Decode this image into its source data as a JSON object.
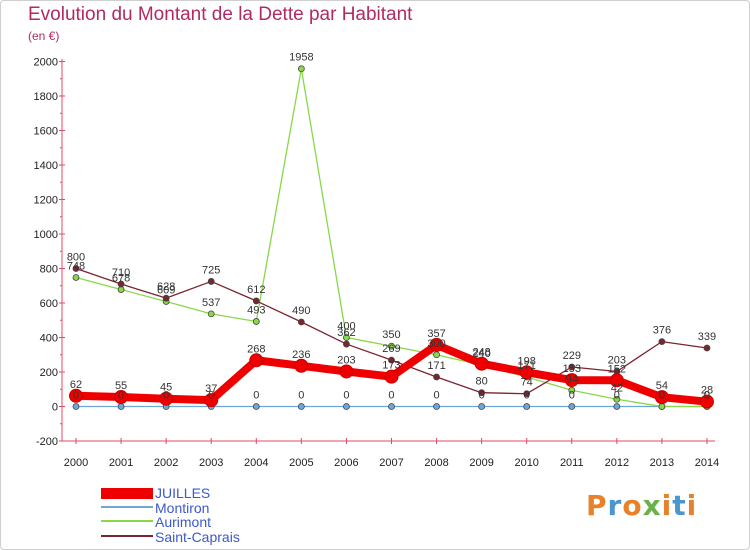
{
  "title": "Evolution du Montant de la Dette par Habitant",
  "subtitle": "(en €)",
  "chart_data": {
    "type": "line",
    "x": [
      "2000",
      "2001",
      "2002",
      "2003",
      "2004",
      "2005",
      "2006",
      "2007",
      "2008",
      "2009",
      "2010",
      "2011",
      "2012",
      "2013",
      "2014"
    ],
    "yticks": [
      "-200",
      "0",
      "200",
      "400",
      "600",
      "800",
      "1000",
      "1200",
      "1400",
      "1600",
      "1800",
      "2000"
    ],
    "ylim": [
      -200,
      2000
    ],
    "grid": false,
    "legend_position": "bottom-left",
    "series": [
      {
        "name": "JUILLES",
        "color": "#ee0000",
        "values": [
          62,
          55,
          45,
          37,
          268,
          236,
          203,
          173,
          357,
          248,
          198,
          153,
          152,
          54,
          28
        ],
        "labels": [
          "62",
          "55",
          "45",
          "37",
          "268",
          "236",
          "203",
          "173",
          "357",
          "248",
          "198",
          "153",
          "152",
          "54",
          "28"
        ]
      },
      {
        "name": "Montiron",
        "color": "#6ea6d6",
        "values": [
          0,
          0,
          0,
          0,
          0,
          0,
          0,
          0,
          0,
          0,
          0,
          0,
          0,
          0,
          0
        ],
        "labels": [
          "0",
          "0",
          "0",
          "0",
          "0",
          "0",
          "0",
          "0",
          "0",
          "0",
          "0",
          "0",
          "0",
          "0",
          "0"
        ]
      },
      {
        "name": "Aurimont",
        "color": "#88d84a",
        "values": [
          748,
          678,
          609,
          537,
          493,
          1958,
          400,
          350,
          300,
          240,
          171,
          94,
          42,
          0,
          0
        ],
        "labels": [
          "748",
          "678",
          "609",
          "537",
          "493",
          "1958",
          "400",
          "350",
          "300",
          "240",
          "171",
          "94",
          "42",
          "0",
          "0"
        ]
      },
      {
        "name": "Saint-Caprais",
        "color": "#7a2530",
        "values": [
          800,
          710,
          628,
          725,
          612,
          490,
          362,
          269,
          171,
          80,
          74,
          229,
          203,
          376,
          339
        ],
        "labels": [
          "800",
          "710",
          "628",
          "725",
          "612",
          "490",
          "362",
          "269",
          "171",
          "80",
          "74",
          "229",
          "203",
          "376",
          "339"
        ]
      }
    ]
  },
  "logo": {
    "text": "Proxiti"
  }
}
